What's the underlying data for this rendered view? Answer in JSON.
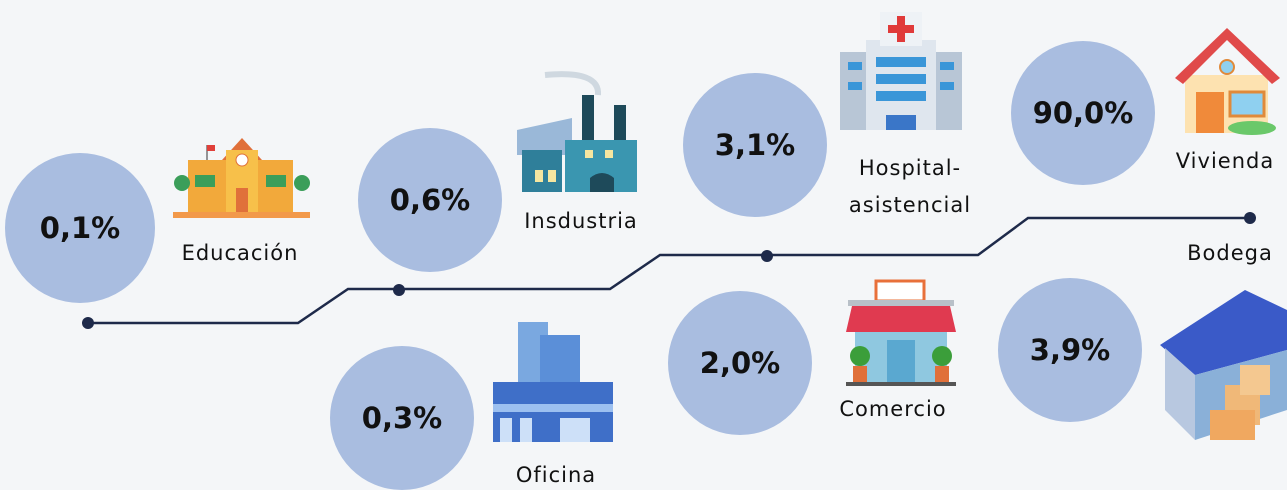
{
  "items": [
    {
      "value": "0,1%",
      "label": [
        "Educación"
      ]
    },
    {
      "value": "0,6%",
      "label": [
        "Insdustria"
      ]
    },
    {
      "value": "0,3%",
      "label": [
        "Oficina"
      ]
    },
    {
      "value": "3,1%",
      "label": [
        "Hospital-",
        "asistencial"
      ]
    },
    {
      "value": "2,0%",
      "label": [
        "Comercio"
      ]
    },
    {
      "value": "90,0%",
      "label": [
        "Vivienda"
      ]
    },
    {
      "value": "3,9%",
      "label": [
        "Bodega"
      ]
    }
  ]
}
